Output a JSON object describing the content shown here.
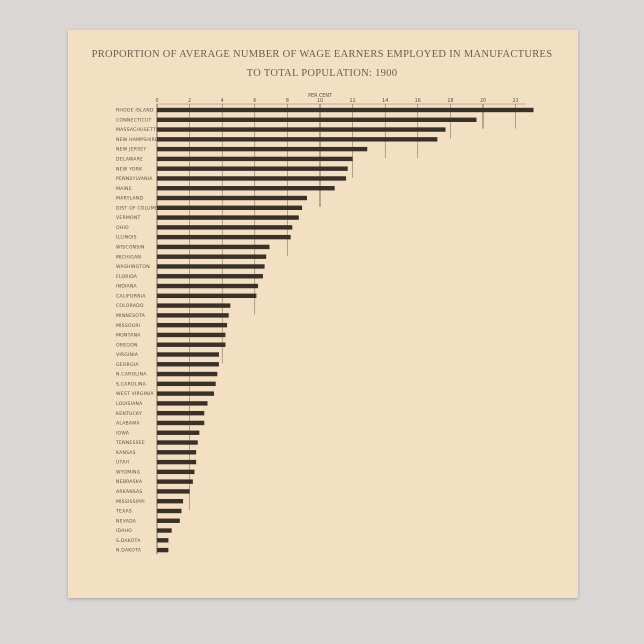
{
  "chart_data": {
    "type": "bar",
    "orientation": "horizontal",
    "title": "PROPORTION OF AVERAGE NUMBER OF WAGE EARNERS EMPLOYED IN MANUFACTURES",
    "subtitle": "TO TOTAL POPULATION: 1900",
    "xlabel": "PER CENT",
    "xlim": [
      0,
      23
    ],
    "x_ticks": [
      0,
      2,
      4,
      6,
      8,
      10,
      12,
      14,
      16,
      18,
      20,
      22
    ],
    "grid": true,
    "categories": [
      "RHODE ISLAND",
      "CONNECTICUT",
      "MASSACHUSETTS",
      "NEW HAMPSHIRE",
      "NEW JERSEY",
      "DELAWARE",
      "NEW YORK",
      "PENNSYLVANIA",
      "MAINE",
      "MARYLAND",
      "DIST OF COLUMBIA",
      "VERMONT",
      "OHIO",
      "ILLINOIS",
      "WISCONSIN",
      "MICHIGAN",
      "WASHINGTON",
      "FLORIDA",
      "INDIANA",
      "CALIFORNIA",
      "COLORADO",
      "MINNESOTA",
      "MISSOURI",
      "MONTANA",
      "OREGON",
      "VIRGINIA",
      "GEORGIA",
      "N.CAROLINA",
      "S.CAROLINA",
      "WEST VIRGINIA",
      "LOUISIANA",
      "KENTUCKY",
      "ALABAMA",
      "IOWA",
      "TENNESSEE",
      "KANSAS",
      "UTAH",
      "WYOMING",
      "NEBRASKA",
      "ARKANSAS",
      "MISSISSIPPI",
      "TEXAS",
      "NEVADA",
      "IDAHO",
      "S.DAKOTA",
      "N.DAKOTA"
    ],
    "values": [
      23.1,
      19.6,
      17.7,
      17.2,
      12.9,
      12.0,
      11.7,
      11.6,
      10.9,
      9.2,
      8.9,
      8.7,
      8.3,
      8.2,
      6.9,
      6.7,
      6.6,
      6.5,
      6.2,
      6.1,
      4.5,
      4.4,
      4.3,
      4.2,
      4.2,
      3.8,
      3.8,
      3.7,
      3.6,
      3.5,
      3.1,
      2.9,
      2.9,
      2.6,
      2.5,
      2.4,
      2.4,
      2.3,
      2.2,
      2.0,
      1.6,
      1.5,
      1.4,
      0.9,
      0.7,
      0.7
    ]
  },
  "colors": {
    "bar": "#3a302a",
    "paper": "#f3e0c2",
    "background": "#d9d6d3",
    "grid": "#6a5e52"
  }
}
